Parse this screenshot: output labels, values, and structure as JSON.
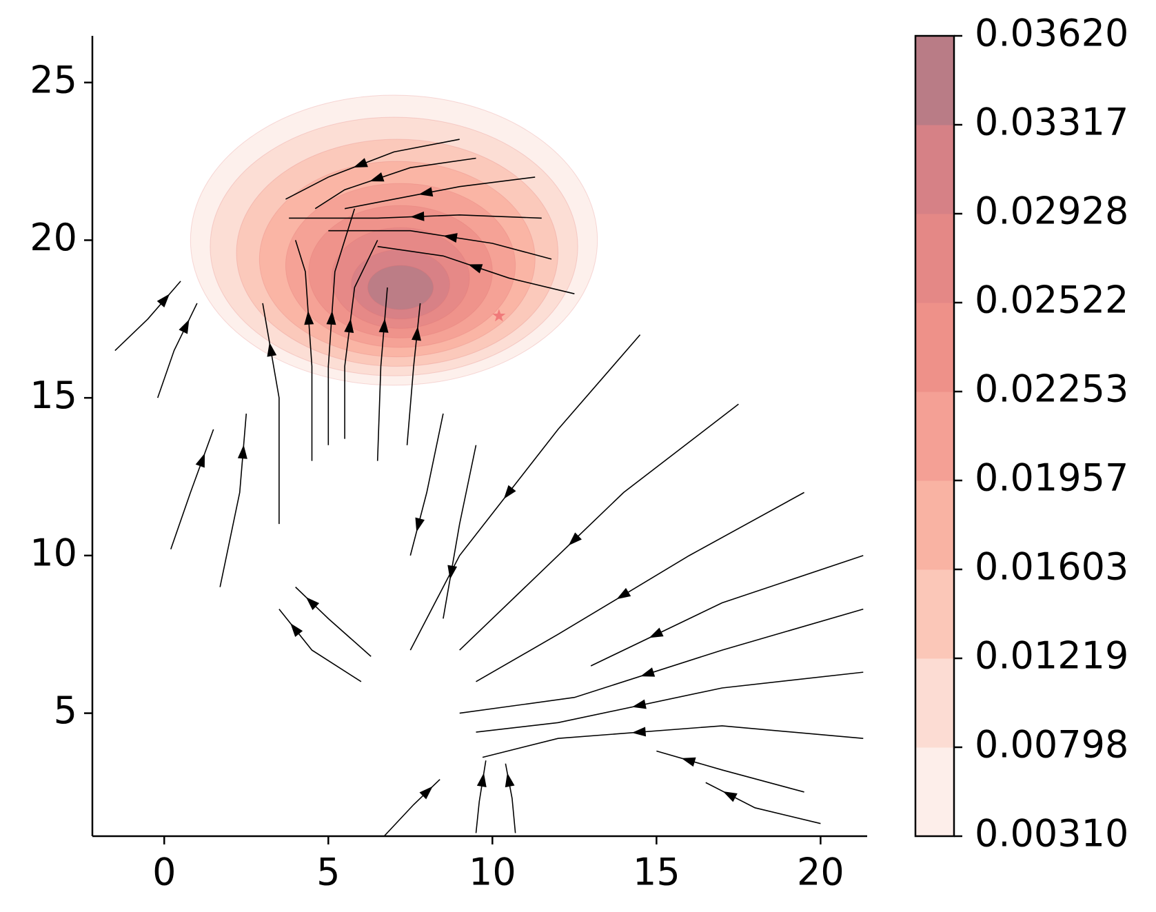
{
  "chart_data": {
    "type": "stream",
    "xlim": [
      -2.19,
      21.42
    ],
    "ylim": [
      1.1,
      26.48
    ],
    "xticks": [
      0,
      5,
      10,
      15,
      20
    ],
    "yticks": [
      5,
      10,
      15,
      20,
      25
    ],
    "line_color": "#000000",
    "contours": [
      {
        "cx": 7.0,
        "cy": 20.0,
        "rx": 6.2,
        "ry": 4.6
      },
      {
        "cx": 7.0,
        "cy": 19.8,
        "rx": 5.6,
        "ry": 4.1
      },
      {
        "cx": 7.1,
        "cy": 19.6,
        "rx": 4.9,
        "ry": 3.6
      },
      {
        "cx": 7.1,
        "cy": 19.4,
        "rx": 4.2,
        "ry": 3.1
      },
      {
        "cx": 7.2,
        "cy": 19.2,
        "rx": 3.5,
        "ry": 2.6
      },
      {
        "cx": 7.2,
        "cy": 19.0,
        "rx": 2.8,
        "ry": 2.1
      },
      {
        "cx": 7.2,
        "cy": 18.8,
        "rx": 2.1,
        "ry": 1.6
      },
      {
        "cx": 7.2,
        "cy": 18.6,
        "rx": 1.5,
        "ry": 1.1
      },
      {
        "cx": 7.2,
        "cy": 18.5,
        "rx": 1.0,
        "ry": 0.7
      }
    ],
    "colors": [
      "#fdeeea",
      "#fcdcd3",
      "#fbc7b8",
      "#f9b3a3",
      "#f4a095",
      "#ee9189",
      "#e48886",
      "#d68186",
      "#b97c86"
    ],
    "marker": {
      "x": 10.2,
      "y": 17.6,
      "color": "#f07a7a"
    },
    "colorbar_ticks": [
      {
        "value": 0.0031,
        "label": "0.00310"
      },
      {
        "value": 0.00798,
        "label": "0.00798"
      },
      {
        "value": 0.01219,
        "label": "0.01219"
      },
      {
        "value": 0.01603,
        "label": "0.01603"
      },
      {
        "value": 0.01957,
        "label": "0.01957"
      },
      {
        "value": 0.02253,
        "label": "0.02253"
      },
      {
        "value": 0.02522,
        "label": "0.02522"
      },
      {
        "value": 0.02928,
        "label": "0.02928"
      },
      {
        "value": 0.03317,
        "label": "0.03317"
      },
      {
        "value": 0.0362,
        "label": "0.03620"
      }
    ],
    "streamlines": [
      {
        "x": [
          9,
          7,
          5,
          3.7
        ],
        "y": [
          23.2,
          22.8,
          22,
          21.3
        ]
      },
      {
        "x": [
          9.5,
          7.5,
          5.5,
          4.6
        ],
        "y": [
          22.6,
          22.3,
          21.6,
          21
        ]
      },
      {
        "x": [
          11.3,
          9,
          7,
          5.5
        ],
        "y": [
          22,
          21.7,
          21.3,
          21
        ]
      },
      {
        "x": [
          11.5,
          9,
          6.5,
          3.8
        ],
        "y": [
          20.7,
          20.8,
          20.7,
          20.7
        ]
      },
      {
        "x": [
          11.8,
          10,
          7.5,
          5
        ],
        "y": [
          19.4,
          19.9,
          20.3,
          20.3
        ]
      },
      {
        "x": [
          12.5,
          10.5,
          8.5,
          6.5
        ],
        "y": [
          18.3,
          18.8,
          19.5,
          19.8
        ]
      },
      {
        "x": [
          5,
          5,
          5.2,
          5.8
        ],
        "y": [
          13.5,
          16,
          19,
          21
        ]
      },
      {
        "x": [
          5.5,
          5.5,
          5.8,
          6.5
        ],
        "y": [
          13.7,
          16,
          18.5,
          20
        ]
      },
      {
        "x": [
          4.5,
          4.5,
          4.3,
          4
        ],
        "y": [
          13,
          16,
          19,
          20
        ]
      },
      {
        "x": [
          3.5,
          3.5,
          3
        ],
        "y": [
          11,
          15,
          18
        ]
      },
      {
        "x": [
          6.5,
          6.6,
          6.8
        ],
        "y": [
          13,
          16,
          18.5
        ]
      },
      {
        "x": [
          7.4,
          7.6,
          7.8
        ],
        "y": [
          13.5,
          16,
          18
        ]
      },
      {
        "x": [
          -0.2,
          0.3,
          1
        ],
        "y": [
          15,
          16.5,
          18
        ]
      },
      {
        "x": [
          -1.5,
          -0.5,
          0.5
        ],
        "y": [
          16.5,
          17.5,
          18.7
        ]
      },
      {
        "x": [
          0.2,
          0.8,
          1.5
        ],
        "y": [
          10.2,
          12,
          14
        ]
      },
      {
        "x": [
          1.7,
          2.3,
          2.5
        ],
        "y": [
          9,
          12,
          14.5
        ]
      },
      {
        "x": [
          8.5,
          8,
          7.5
        ],
        "y": [
          14.5,
          12,
          10
        ]
      },
      {
        "x": [
          9.5,
          9,
          8.5
        ],
        "y": [
          13.5,
          11,
          8
        ]
      },
      {
        "x": [
          14.5,
          12,
          9,
          7.5
        ],
        "y": [
          17,
          14,
          10,
          7
        ]
      },
      {
        "x": [
          17.5,
          14,
          11,
          9
        ],
        "y": [
          14.8,
          12,
          9,
          7
        ]
      },
      {
        "x": [
          19.5,
          16,
          12,
          9.5
        ],
        "y": [
          12,
          10,
          7.5,
          6
        ]
      },
      {
        "x": [
          21.3,
          17,
          13
        ],
        "y": [
          10,
          8.5,
          6.5
        ]
      },
      {
        "x": [
          21.3,
          17,
          12.5,
          9
        ],
        "y": [
          8.3,
          7,
          5.5,
          5
        ]
      },
      {
        "x": [
          21.3,
          17,
          12,
          9.5
        ],
        "y": [
          6.3,
          5.8,
          4.7,
          4.4
        ]
      },
      {
        "x": [
          21.3,
          17,
          12,
          9.7
        ],
        "y": [
          4.2,
          4.6,
          4.2,
          3.6
        ]
      },
      {
        "x": [
          19.5,
          17,
          15
        ],
        "y": [
          2.5,
          3.2,
          3.8
        ]
      },
      {
        "x": [
          20,
          18,
          16.5
        ],
        "y": [
          1.5,
          2,
          2.8
        ]
      },
      {
        "x": [
          6,
          4.5,
          3.5
        ],
        "y": [
          6,
          7,
          8.3
        ]
      },
      {
        "x": [
          6.3,
          5,
          4
        ],
        "y": [
          6.8,
          8,
          9
        ]
      },
      {
        "x": [
          9.5,
          9.6,
          9.8
        ],
        "y": [
          1.2,
          2.2,
          3.5
        ]
      },
      {
        "x": [
          6.7,
          7.6,
          8.4
        ],
        "y": [
          1.1,
          2.1,
          2.9
        ]
      },
      {
        "x": [
          10.7,
          10.6,
          10.4
        ],
        "y": [
          1.2,
          2.3,
          3.4
        ]
      }
    ]
  }
}
